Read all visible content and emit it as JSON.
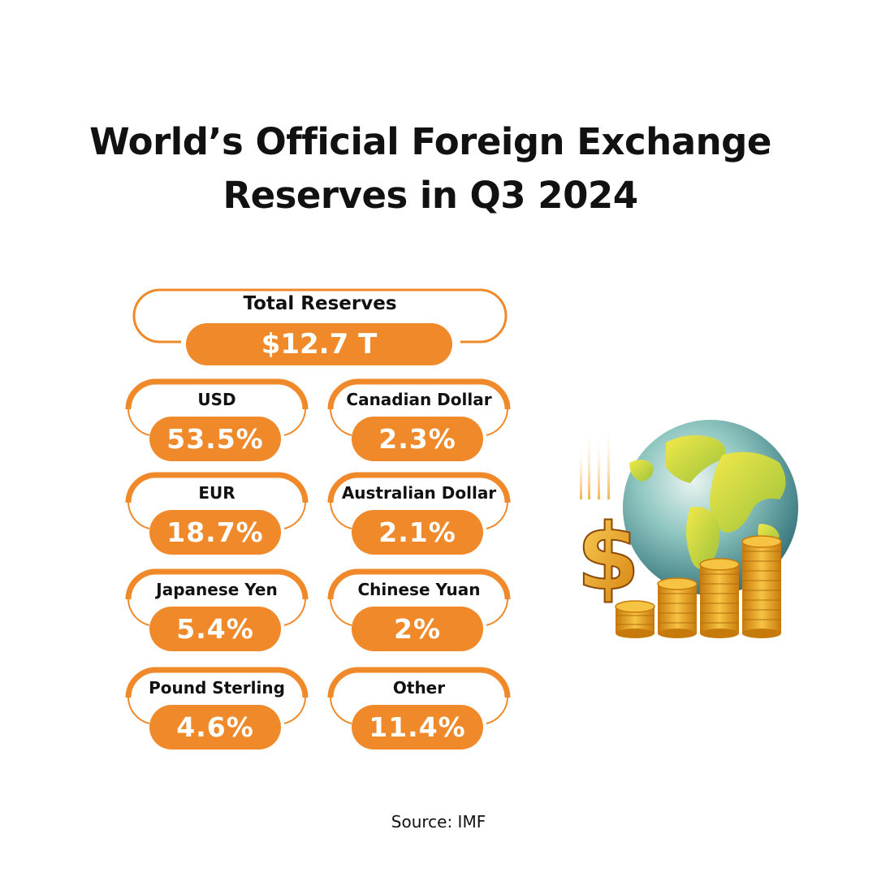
{
  "title": {
    "line1": "World’s Official Foreign Exchange",
    "line2": "Reserves in Q3 2024"
  },
  "total": {
    "label": "Total Reserves",
    "value": "$12.7 T"
  },
  "currencies": [
    {
      "label": "USD",
      "value": "53.5%"
    },
    {
      "label": "Canadian Dollar",
      "value": "2.3%"
    },
    {
      "label": "EUR",
      "value": "18.7%"
    },
    {
      "label": "Australian Dollar",
      "value": "2.1%"
    },
    {
      "label": "Japanese Yen",
      "value": "5.4%"
    },
    {
      "label": "Chinese Yuan",
      "value": "2%"
    },
    {
      "label": "Pound Sterling",
      "value": "4.6%"
    },
    {
      "label": "Other",
      "value": "11.4%"
    }
  ],
  "source": "Source: IMF",
  "colors": {
    "accent": "#f0892a",
    "text": "#111111",
    "background": "#ffffff"
  },
  "illustration": {
    "icons": [
      "globe-icon",
      "dollar-sign-icon",
      "coin-stacks-icon"
    ]
  }
}
